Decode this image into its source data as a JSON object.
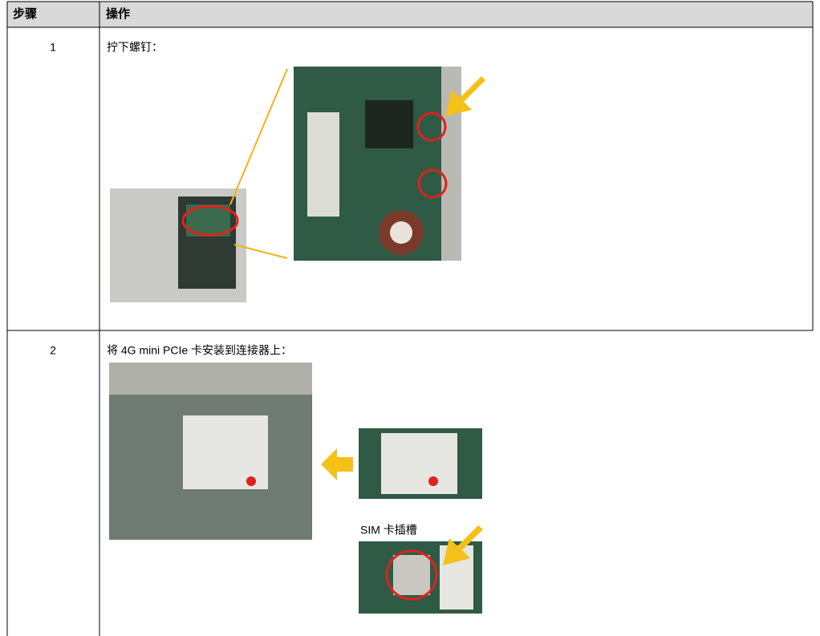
{
  "table": {
    "header": [
      "步骤",
      "操作"
    ],
    "rows": [
      [
        "1",
        "拧下螺钉："
      ],
      [
        "2",
        "将 4G mini PCIe 卡安装到连接器上："
      ]
    ]
  },
  "annotations": {
    "sim_slot": "SIM 卡插槽"
  }
}
